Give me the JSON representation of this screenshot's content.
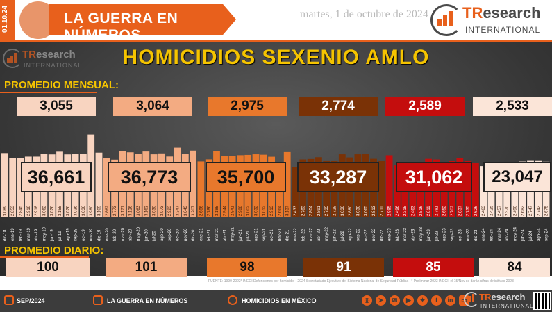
{
  "header": {
    "side_date": "01.10.24",
    "title": "LA GUERRA EN NÚMEROS",
    "date": "martes, 1 de octubre de 2024",
    "brand_tr": "TR",
    "brand_research": "esearch",
    "brand_international": "INTERNATIONAL"
  },
  "main": {
    "title": "HOMICIDIOS SEXENIO AMLO",
    "monthly_label": "PROMEDIO MENSUAL:",
    "daily_label": "PROMEDIO DIARIO:"
  },
  "years": [
    {
      "monthly_avg": "3,055",
      "total": "36,661",
      "daily_avg": "100",
      "color": "#f8d4c0"
    },
    {
      "monthly_avg": "3,064",
      "total": "36,773",
      "daily_avg": "101",
      "color": "#f3ab82"
    },
    {
      "monthly_avg": "2,975",
      "total": "35,700",
      "daily_avg": "98",
      "color": "#e8782c"
    },
    {
      "monthly_avg": "2,774",
      "total": "33,287",
      "daily_avg": "91",
      "color": "#7a3206"
    },
    {
      "monthly_avg": "2,589",
      "total": "31,062",
      "daily_avg": "85",
      "color": "#c40d0d"
    },
    {
      "monthly_avg": "2,533",
      "total": "23,047",
      "daily_avg": "84",
      "color": "#fbe5d8"
    }
  ],
  "chart_data": {
    "type": "bar",
    "title": "HOMICIDIOS SEXENIO AMLO",
    "categories": [
      "dic-18",
      "ene-19",
      "feb-19",
      "mar-19",
      "abr-19",
      "may-19",
      "jun-19",
      "jul-19",
      "ago-19",
      "sep-19",
      "oct-19",
      "nov-19",
      "dic-19",
      "ene-20",
      "feb-20",
      "mar-20",
      "abr-20",
      "may-20",
      "jun-20",
      "jul-20",
      "ago-20",
      "sep-20",
      "oct-20",
      "nov-20",
      "dic-20",
      "ene-21",
      "feb-21",
      "mar-21",
      "abr-21",
      "may-21",
      "jun-21",
      "jul-21",
      "ago-21",
      "sep-21",
      "oct-21",
      "nov-21",
      "dic-21",
      "ene-22",
      "feb-22",
      "mar-22",
      "abr-22",
      "may-22",
      "jun-22",
      "jul-22",
      "ago-22",
      "sep-22",
      "oct-22",
      "nov-22",
      "dic-22",
      "ene-23",
      "feb-23",
      "mar-23",
      "abr-23",
      "may-23",
      "jun-23",
      "jul-23",
      "ago-23",
      "sep-23",
      "oct-23",
      "nov-23",
      "dic-23",
      "ene-24",
      "feb-24",
      "mar-24",
      "abr-24",
      "may-24",
      "jun-24",
      "jul-24",
      "ago-24",
      "sep-24"
    ],
    "value_labels": [
      "3,089",
      "2,853",
      "2,845",
      "2,918",
      "2,918",
      "3,062",
      "3,026",
      "3,155",
      "3,026",
      "3,036",
      "3,036",
      "3,980",
      "3,109",
      "2,862",
      "2,773",
      "3,171",
      "3,126",
      "3,063",
      "3,163",
      "3,030",
      "3,073",
      "2,923",
      "3,347",
      "3,043",
      "3,207",
      "2,686",
      "2,786",
      "3,185",
      "2,944",
      "2,941",
      "2,988",
      "3,002",
      "3,032",
      "3,012",
      "2,913",
      "2,664",
      "3,137",
      "2,433",
      "2,783",
      "2,804",
      "2,891",
      "2,735",
      "2,729",
      "3,030",
      "2,880",
      "3,030",
      "3,065",
      "2,813",
      "2,711",
      "2,985",
      "2,496",
      "2,315",
      "2,463",
      "2,516",
      "2,811",
      "2,781",
      "2,652",
      "2,702",
      "2,837",
      "2,735",
      "2,626",
      "2,463",
      "2,425",
      "2,457",
      "2,370",
      "2,490",
      "2,682",
      "2,747",
      "2,742",
      "2,675"
    ],
    "series": [
      {
        "values": [
          3089,
          2853,
          2845,
          2918,
          2918,
          3062,
          3026,
          3155,
          3026,
          3036,
          3036,
          3980,
          3109,
          2862,
          2773,
          3171,
          3126,
          3063,
          3163,
          3030,
          3073,
          2923,
          3347,
          3043,
          3207,
          2686,
          2786,
          3185,
          2944,
          2941,
          2988,
          3002,
          3032,
          3012,
          2913,
          2664,
          3137,
          2433,
          2783,
          2804,
          2891,
          2735,
          2729,
          3030,
          2880,
          3030,
          3065,
          2813,
          2711,
          2985,
          2496,
          2315,
          2463,
          2516,
          2811,
          2781,
          2652,
          2702,
          2837,
          2735,
          2626,
          2463,
          2425,
          2457,
          2370,
          2490,
          2682,
          2747,
          2742,
          2675
        ]
      }
    ],
    "ylim": [
      0,
      4000
    ],
    "period_colors": [
      "#f8d4c0",
      "#f3ab82",
      "#e8782c",
      "#7a3206",
      "#c40d0d",
      "#fbe5d8"
    ],
    "grid": false
  },
  "footer": {
    "source": "FUENTE: 1990-2022* INEGI Defunciones por homicidio - 2024 Secretariado Ejecutivo del Sistema Nacional de Seguridad Pública | * Preliminar 2023 INEGI, el 15/Nov se darán cifras definitivas 2023",
    "period": "SEP/2024",
    "series_name": "LA GUERRA EN NÚMEROS",
    "topic": "HOMICIDIOS EN MÉXICO",
    "icons": [
      "globe-icon",
      "telegram-icon",
      "mail-icon",
      "youtube-icon",
      "twitter-icon",
      "facebook-icon",
      "linkedin-icon",
      "tv-icon"
    ]
  }
}
